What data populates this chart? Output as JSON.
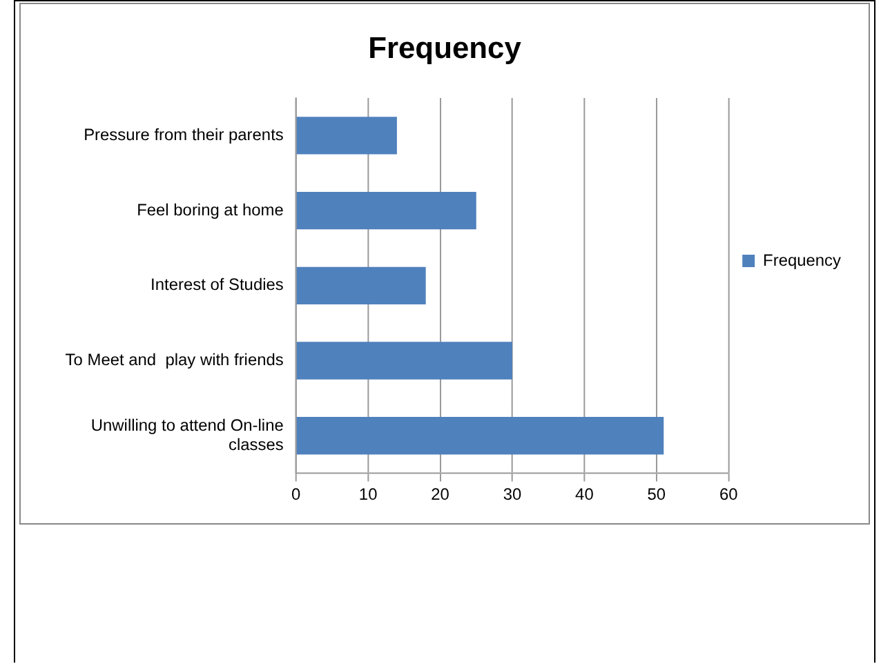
{
  "chart_data": {
    "type": "bar",
    "orientation": "horizontal",
    "title": "Frequency",
    "categories": [
      "Pressure from their parents",
      "Feel boring at home",
      "Interest of Studies",
      "To Meet and  play with friends",
      "Unwilling to attend On-line classes"
    ],
    "series": [
      {
        "name": "Frequency",
        "color": "#4f81bd",
        "values": [
          14,
          25,
          18,
          30,
          51
        ]
      }
    ],
    "xlim": [
      0,
      60
    ],
    "xticks": [
      0,
      10,
      20,
      30,
      40,
      50,
      60
    ],
    "grid": "x",
    "legend": "right"
  }
}
